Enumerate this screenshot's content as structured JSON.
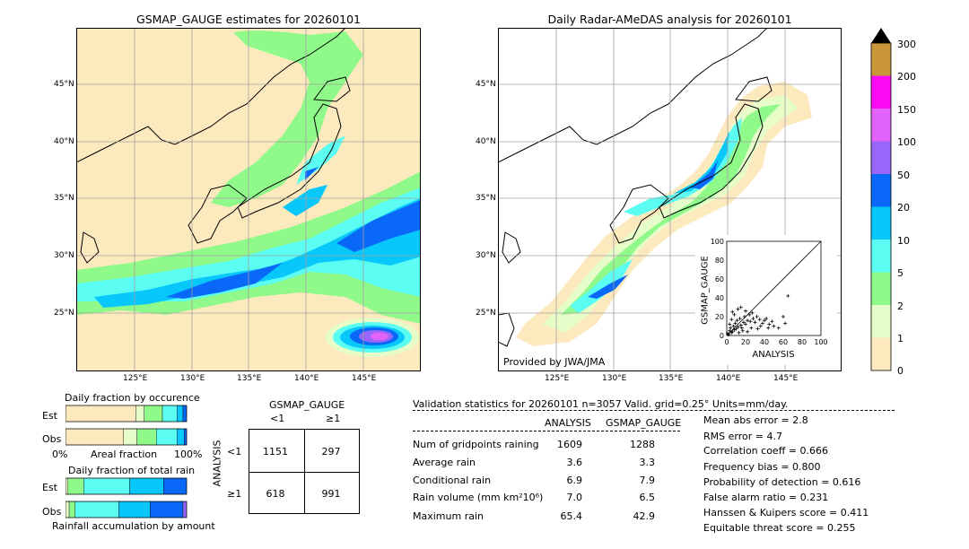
{
  "left_map": {
    "title": "GSMAP_GAUGE estimates for 20260101",
    "lat_labels": [
      "45°N",
      "40°N",
      "35°N",
      "30°N",
      "25°N"
    ],
    "lon_labels": [
      "125°E",
      "130°E",
      "135°E",
      "140°E",
      "145°E"
    ]
  },
  "right_map": {
    "title": "Daily Radar-AMeDAS analysis for 20260101",
    "lat_labels": [
      "45°N",
      "40°N",
      "35°N",
      "30°N",
      "25°N"
    ],
    "lon_labels": [
      "125°E",
      "130°E",
      "135°E",
      "140°E",
      "145°E"
    ],
    "provider": "Provided by JWA/JMA"
  },
  "colorbar": {
    "labels": [
      "0",
      "1",
      "2",
      "5",
      "10",
      "20",
      "50",
      "100",
      "150",
      "200",
      "300"
    ],
    "colors": [
      "#fde9be",
      "#e6fcc9",
      "#8ff98a",
      "#5bfcf1",
      "#08c8fb",
      "#0a68f9",
      "#9966f9",
      "#e163f9",
      "#fd08f4",
      "#c9963a"
    ],
    "over_color": "#000000"
  },
  "chart_data": [
    {
      "type": "scatter",
      "title": "",
      "xlabel": "ANALYSIS",
      "ylabel": "GSMAP_GAUGE",
      "xlim": [
        0,
        100
      ],
      "ylim": [
        0,
        100
      ],
      "ticks": [
        "0",
        "20",
        "40",
        "60",
        "80",
        "100"
      ],
      "points": [
        [
          1,
          2
        ],
        [
          2,
          1
        ],
        [
          3,
          5
        ],
        [
          5,
          3
        ],
        [
          4,
          8
        ],
        [
          6,
          4
        ],
        [
          8,
          6
        ],
        [
          7,
          10
        ],
        [
          10,
          7
        ],
        [
          12,
          9
        ],
        [
          9,
          13
        ],
        [
          15,
          11
        ],
        [
          11,
          16
        ],
        [
          14,
          18
        ],
        [
          18,
          14
        ],
        [
          16,
          8
        ],
        [
          20,
          12
        ],
        [
          22,
          16
        ],
        [
          19,
          20
        ],
        [
          25,
          15
        ],
        [
          28,
          18
        ],
        [
          24,
          22
        ],
        [
          30,
          14
        ],
        [
          32,
          20
        ],
        [
          35,
          17
        ],
        [
          38,
          13
        ],
        [
          40,
          16
        ],
        [
          42,
          18
        ],
        [
          45,
          12
        ],
        [
          48,
          15
        ],
        [
          50,
          10
        ],
        [
          55,
          8
        ],
        [
          60,
          20
        ],
        [
          62,
          13
        ],
        [
          65,
          42
        ],
        [
          12,
          28
        ],
        [
          20,
          26
        ],
        [
          26,
          8
        ],
        [
          33,
          7
        ],
        [
          17,
          5
        ],
        [
          5,
          17
        ],
        [
          8,
          22
        ],
        [
          3,
          12
        ],
        [
          13,
          3
        ],
        [
          22,
          4
        ],
        [
          44,
          8
        ],
        [
          27,
          24
        ],
        [
          36,
          10
        ],
        [
          15,
          30
        ],
        [
          6,
          25
        ]
      ]
    },
    {
      "type": "bar",
      "title": "Daily fraction by occurence",
      "categories": [
        "Est",
        "Obs"
      ],
      "xlabel": "Areal fraction",
      "x_ticks": [
        "0%",
        "100%"
      ],
      "series": [
        {
          "color": "#fde9be",
          "values": [
            0.58,
            0.48
          ]
        },
        {
          "color": "#e6fcc9",
          "values": [
            0.07,
            0.11
          ]
        },
        {
          "color": "#8ff98a",
          "values": [
            0.15,
            0.16
          ]
        },
        {
          "color": "#5bfcf1",
          "values": [
            0.12,
            0.17
          ]
        },
        {
          "color": "#08c8fb",
          "values": [
            0.05,
            0.06
          ]
        },
        {
          "color": "#0a68f9",
          "values": [
            0.03,
            0.02
          ]
        }
      ]
    },
    {
      "type": "bar",
      "title": "Daily fraction of total rain",
      "categories": [
        "Est",
        "Obs"
      ],
      "xlabel": "Rainfall accumulation by amount",
      "series": [
        {
          "color": "#e6fcc9",
          "values": [
            0.02,
            0.03
          ]
        },
        {
          "color": "#8ff98a",
          "values": [
            0.13,
            0.05
          ]
        },
        {
          "color": "#5bfcf1",
          "values": [
            0.38,
            0.36
          ]
        },
        {
          "color": "#08c8fb",
          "values": [
            0.28,
            0.26
          ]
        },
        {
          "color": "#0a68f9",
          "values": [
            0.19,
            0.27
          ]
        },
        {
          "color": "#9966f9",
          "values": [
            0.0,
            0.03
          ]
        }
      ]
    },
    {
      "type": "table",
      "title": "GSMAP_GAUGE",
      "col_headers": [
        "<1",
        "≥1"
      ],
      "row_label": "ANALYSIS",
      "row_headers": [
        "<1",
        "≥1"
      ],
      "cells": [
        [
          "1151",
          "297"
        ],
        [
          "618",
          "991"
        ]
      ]
    }
  ],
  "validation": {
    "header": "Validation statistics for 20260101  n=3057 Valid. grid=0.25° Units=mm/day.",
    "col_analysis": "ANALYSIS",
    "col_gsmap": "GSMAP_GAUGE",
    "rows": [
      {
        "label": "Num of gridpoints raining",
        "analysis": "1609",
        "gsmap": "1288"
      },
      {
        "label": "Average rain",
        "analysis": "3.6",
        "gsmap": "3.3"
      },
      {
        "label": "Conditional rain",
        "analysis": "6.9",
        "gsmap": "7.9"
      },
      {
        "label": "Rain volume (mm km²10⁶)",
        "analysis": "7.0",
        "gsmap": "6.5"
      },
      {
        "label": "Maximum rain",
        "analysis": "65.4",
        "gsmap": "42.9"
      }
    ],
    "scores": [
      "Mean abs error =    2.8",
      "RMS error =    4.7",
      "Correlation coeff =  0.666",
      "Frequency bias =  0.800",
      "Probability of detection =  0.616",
      "False alarm ratio =  0.231",
      "Hanssen & Kuipers score =  0.411",
      "Equitable threat score =  0.255"
    ]
  }
}
